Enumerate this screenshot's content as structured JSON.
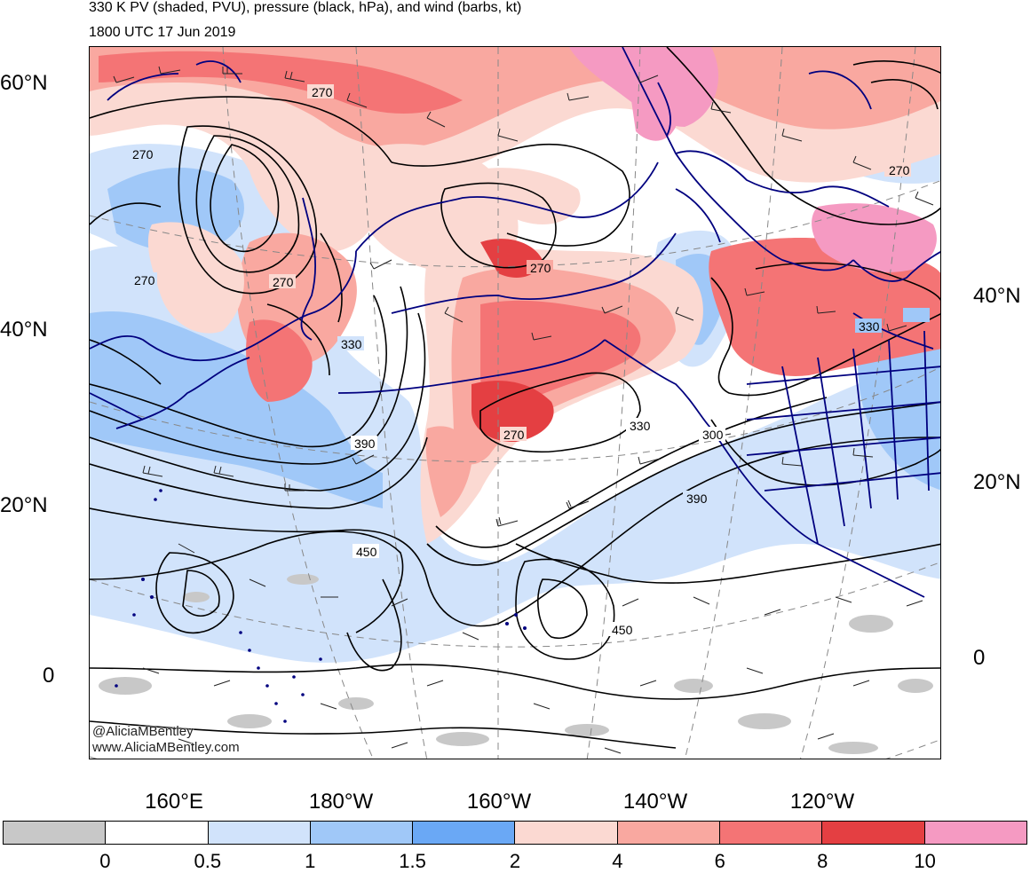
{
  "title": {
    "line1": "330 K PV (shaded, PVU), pressure (black, hPa), and wind (barbs, kt)",
    "line2": "1800 UTC 17 Jun 2019"
  },
  "lat_labels_left": [
    "60°N",
    "40°N",
    "20°N",
    "0"
  ],
  "lat_labels_right": [
    "40°N",
    "20°N",
    "0"
  ],
  "lon_labels": [
    "160°E",
    "180°W",
    "160°W",
    "140°W",
    "120°W"
  ],
  "contour_labels": [
    "270",
    "270",
    "270",
    "270",
    "270",
    "270",
    "270",
    "330",
    "330",
    "330",
    "390",
    "390",
    "450",
    "450",
    "300"
  ],
  "credit": {
    "line1": "@AliciaMBentley",
    "line2": "www.AliciaMBentley.com"
  },
  "colorbar": {
    "labels": [
      "0",
      "0.5",
      "1",
      "1.5",
      "2",
      "4",
      "6",
      "8",
      "10"
    ],
    "colors": [
      "#c8c8c8",
      "#ffffff",
      "#d1e3fb",
      "#a0c8f8",
      "#6aa8f5",
      "#fbd9d2",
      "#f9a8a0",
      "#f47475",
      "#e43f42",
      "#f59ac2"
    ]
  },
  "layers": {
    "pv_fill_colors": {
      "low": "#d1e3fb",
      "mid": "#a0c8f8",
      "pink_light": "#fbd9d2",
      "pink": "#f9a8a0",
      "red": "#f47475",
      "dark_red": "#e43f42",
      "magenta": "#f59ac2",
      "gray": "#c8c8c8"
    },
    "coastline_color": "#00007f",
    "contour_color": "#000000",
    "graticule_color": "#888888"
  }
}
